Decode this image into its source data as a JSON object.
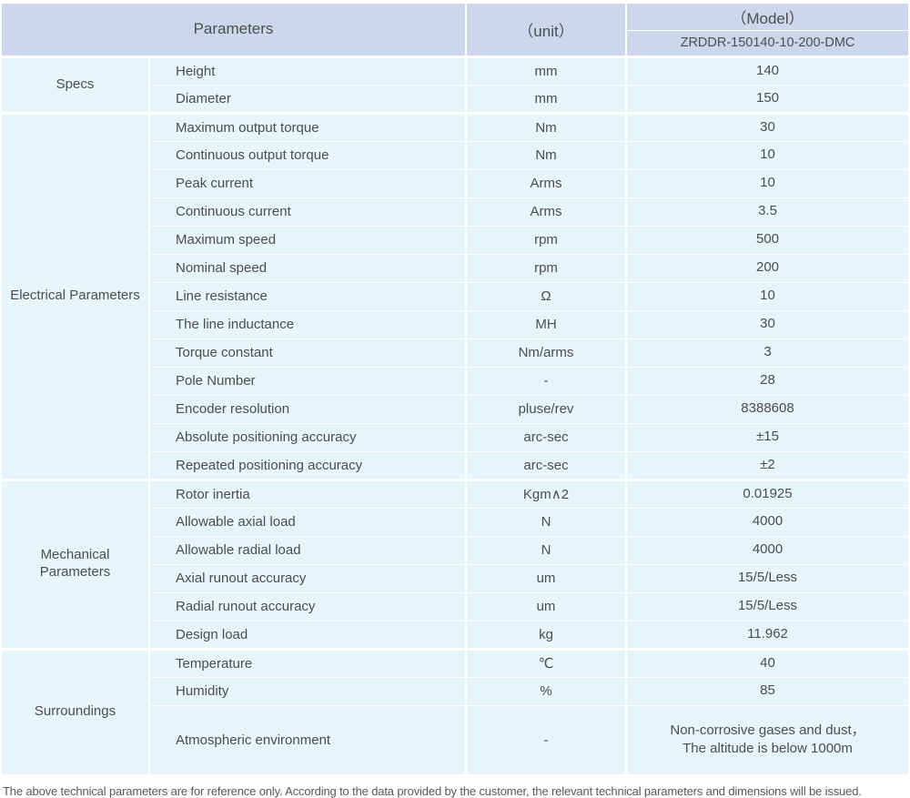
{
  "table": {
    "header": {
      "parameters_label": "Parameters",
      "unit_label": "（unit）",
      "model_label": "（Model）",
      "model_value": "ZRDDR-150140-10-200-DMC"
    },
    "sections": [
      {
        "category": "Specs",
        "rows": [
          {
            "parameter": "Height",
            "unit": "mm",
            "value": "140"
          },
          {
            "parameter": "Diameter",
            "unit": "mm",
            "value": "150"
          }
        ]
      },
      {
        "category": "Electrical Parameters",
        "rows": [
          {
            "parameter": "Maximum output torque",
            "unit": "Nm",
            "value": "30"
          },
          {
            "parameter": "Continuous output torque",
            "unit": "Nm",
            "value": "10"
          },
          {
            "parameter": "Peak current",
            "unit": "Arms",
            "value": "10"
          },
          {
            "parameter": "Continuous current",
            "unit": "Arms",
            "value": "3.5"
          },
          {
            "parameter": "Maximum speed",
            "unit": "rpm",
            "value": "500"
          },
          {
            "parameter": "Nominal speed",
            "unit": "rpm",
            "value": "200"
          },
          {
            "parameter": "Line resistance",
            "unit": "Ω",
            "value": "10"
          },
          {
            "parameter": "The line inductance",
            "unit": "MH",
            "value": "30"
          },
          {
            "parameter": "Torque constant",
            "unit": "Nm/arms",
            "value": "3"
          },
          {
            "parameter": "Pole Number",
            "unit": "-",
            "value": "28"
          },
          {
            "parameter": "Encoder resolution",
            "unit": "pluse/rev",
            "value": "8388608"
          },
          {
            "parameter": "Absolute positioning accuracy",
            "unit": "arc-sec",
            "value": "±15"
          },
          {
            "parameter": "Repeated positioning accuracy",
            "unit": "arc-sec",
            "value": "±2"
          }
        ]
      },
      {
        "category": "Mechanical Parameters",
        "rows": [
          {
            "parameter": "Rotor inertia",
            "unit": "Kgm∧2",
            "value": "0.01925"
          },
          {
            "parameter": "Allowable axial load",
            "unit": "N",
            "value": "4000"
          },
          {
            "parameter": "Allowable radial load",
            "unit": "N",
            "value": "4000"
          },
          {
            "parameter": "Axial runout accuracy",
            "unit": "um",
            "value": "15/5/Less"
          },
          {
            "parameter": "Radial runout accuracy",
            "unit": "um",
            "value": "15/5/Less"
          },
          {
            "parameter": "Design load",
            "unit": "kg",
            "value": "11.962"
          }
        ]
      },
      {
        "category": "Surroundings",
        "rows": [
          {
            "parameter": "Temperature",
            "unit": "℃",
            "value": "40"
          },
          {
            "parameter": "Humidity",
            "unit": "%",
            "value": "85"
          },
          {
            "parameter": "Atmospheric environment",
            "unit": "-",
            "value": "Non-corrosive gases and dust，\nThe altitude is below 1000m",
            "tall": true
          }
        ]
      }
    ]
  },
  "footnote": "The above technical parameters are for reference only. According to the data provided by the customer, the relevant technical parameters and dimensions will be issued.",
  "colors": {
    "header_bg": "#cdd7ec",
    "row_bg": "#e6f4fb",
    "grid": "#ffffff",
    "text": "#4d4d4d",
    "footnote_text": "#595757"
  }
}
